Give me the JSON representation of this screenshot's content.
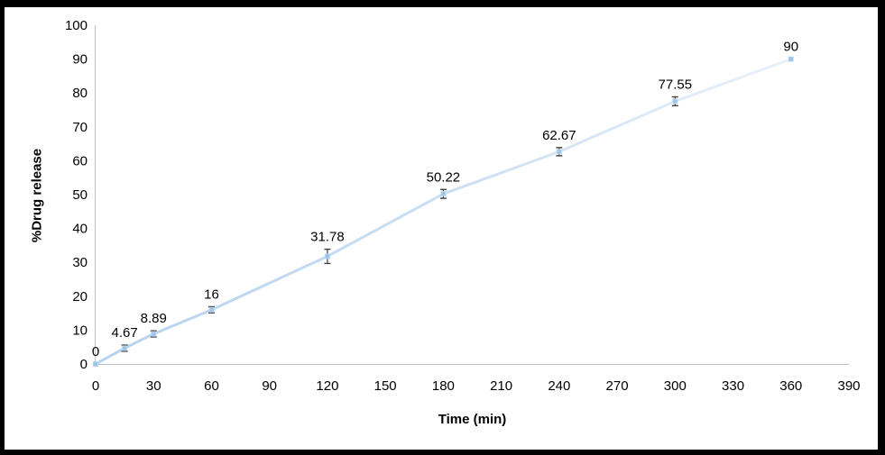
{
  "chart_data": {
    "type": "line",
    "title": "",
    "xlabel": "Time (min)",
    "ylabel": "%Drug release",
    "x": [
      0,
      15,
      30,
      60,
      120,
      180,
      240,
      300,
      360
    ],
    "y": [
      0,
      4.67,
      8.89,
      16,
      31.78,
      50.22,
      62.67,
      77.55,
      90
    ],
    "point_labels": [
      "0",
      "4.67",
      "8.89",
      "16",
      "31.78",
      "50.22",
      "62.67",
      "77.55",
      "90"
    ],
    "error_bars_y": [
      0,
      0.9,
      0.9,
      0.9,
      2.1,
      1.3,
      1.2,
      1.3,
      0
    ],
    "x_ticks": [
      0,
      30,
      60,
      90,
      120,
      150,
      180,
      210,
      240,
      270,
      300,
      330,
      360,
      390
    ],
    "y_ticks": [
      0,
      10,
      20,
      30,
      40,
      50,
      60,
      70,
      80,
      90,
      100
    ],
    "xlim": [
      0,
      390
    ],
    "ylim": [
      0,
      100
    ],
    "grid": false,
    "legend": "none",
    "colors": {
      "line_start": "#B5D3EE",
      "line_mid": "#CDE0F2",
      "line_end": "#E9F1FA",
      "marker_fill": "#9DC3E6",
      "marker_border": "#BDD7EE",
      "error_bar": "#3F3F3F",
      "axis_line": "#BFBFBF",
      "text": "#000000",
      "frame_border": "#000000",
      "background": "#FFFFFF"
    }
  }
}
